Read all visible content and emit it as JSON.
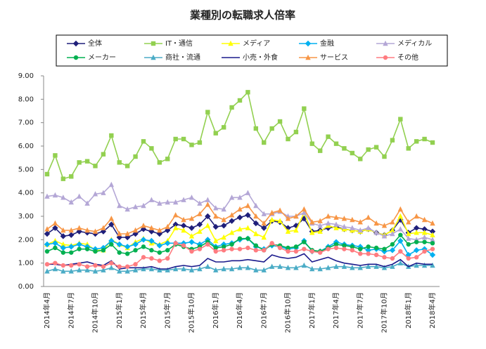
{
  "chart_data": {
    "type": "line",
    "title": "業種別の転職求人倍率",
    "categories": [
      "2014年4月",
      null,
      null,
      "2014年7月",
      null,
      null,
      "2014年10月",
      null,
      null,
      "2015年1月",
      null,
      null,
      "2015年4月",
      null,
      null,
      "2015年7月",
      null,
      null,
      "2015年10月",
      null,
      null,
      "2016年1月",
      null,
      null,
      "2016年4月",
      null,
      null,
      "2016年7月",
      null,
      null,
      "2016年10月",
      null,
      null,
      "2017年1月",
      null,
      null,
      "2017年4月",
      null,
      null,
      "2017年7月",
      null,
      null,
      "2017年10月",
      null,
      null,
      "2018年1月",
      null,
      null,
      "2018年4月"
    ],
    "series": [
      {
        "name": "全体",
        "color": "#1f1f7a",
        "marker": "diamond",
        "values": [
          2.25,
          2.5,
          2.15,
          2.2,
          2.35,
          2.3,
          2.25,
          2.35,
          2.65,
          2.1,
          2.1,
          2.25,
          2.45,
          2.35,
          2.25,
          2.4,
          2.65,
          2.6,
          2.5,
          2.65,
          3.0,
          2.55,
          2.6,
          2.8,
          2.95,
          3.05,
          2.7,
          2.5,
          2.8,
          2.75,
          2.5,
          2.6,
          2.9,
          2.35,
          2.4,
          2.5,
          2.55,
          2.45,
          2.4,
          2.35,
          2.45,
          2.3,
          2.2,
          2.4,
          2.85,
          2.3,
          2.5,
          2.45,
          2.35
        ]
      },
      {
        "name": "IT・通信",
        "color": "#92d050",
        "marker": "square",
        "values": [
          4.8,
          5.6,
          4.6,
          4.7,
          5.3,
          5.35,
          5.15,
          5.65,
          6.45,
          5.3,
          5.15,
          5.55,
          6.2,
          5.9,
          5.3,
          5.45,
          6.3,
          6.3,
          6.05,
          6.15,
          7.45,
          6.55,
          6.8,
          7.65,
          7.95,
          8.3,
          6.75,
          6.15,
          6.75,
          7.05,
          6.3,
          6.6,
          7.6,
          6.1,
          5.8,
          6.4,
          6.1,
          5.9,
          5.7,
          5.45,
          5.85,
          5.95,
          5.55,
          6.25,
          7.15,
          5.9,
          6.2,
          6.3,
          6.15
        ]
      },
      {
        "name": "メディア",
        "color": "#ffff00",
        "marker": "triangle",
        "values": [
          1.8,
          1.95,
          1.8,
          1.75,
          1.85,
          1.8,
          1.55,
          1.55,
          2.0,
          1.8,
          1.65,
          1.9,
          2.05,
          1.85,
          1.8,
          1.95,
          2.5,
          2.4,
          2.15,
          2.35,
          2.6,
          1.95,
          2.1,
          2.3,
          2.45,
          2.5,
          2.25,
          2.1,
          2.85,
          2.8,
          2.35,
          2.4,
          3.15,
          2.3,
          2.35,
          2.6,
          2.5,
          2.45,
          2.4,
          2.35,
          2.45,
          2.3,
          2.2,
          2.4,
          3.0,
          2.25,
          2.3,
          2.3,
          2.2
        ]
      },
      {
        "name": "金融",
        "color": "#00b0f0",
        "marker": "diamond",
        "values": [
          1.8,
          1.85,
          1.65,
          1.7,
          1.8,
          1.7,
          1.6,
          1.65,
          1.95,
          1.8,
          1.7,
          1.8,
          2.0,
          1.95,
          1.75,
          1.85,
          1.85,
          1.85,
          1.9,
          1.8,
          2.0,
          1.7,
          1.8,
          1.85,
          2.0,
          2.05,
          1.7,
          1.6,
          1.75,
          1.7,
          1.6,
          1.65,
          1.95,
          1.5,
          1.5,
          1.7,
          1.9,
          1.8,
          1.75,
          1.7,
          1.55,
          1.6,
          1.5,
          1.55,
          1.95,
          1.35,
          1.55,
          1.6,
          1.35
        ]
      },
      {
        "name": "メディカル",
        "color": "#b4a7d6",
        "marker": "triangle",
        "values": [
          3.85,
          3.9,
          3.8,
          3.6,
          3.85,
          3.55,
          3.95,
          4.0,
          4.35,
          3.45,
          3.3,
          3.4,
          3.45,
          3.7,
          3.55,
          3.6,
          3.6,
          3.7,
          3.8,
          3.55,
          3.7,
          3.35,
          3.3,
          3.8,
          3.8,
          4.0,
          3.45,
          3.1,
          3.1,
          3.2,
          3.0,
          3.0,
          3.15,
          2.7,
          2.6,
          2.7,
          2.65,
          2.55,
          2.5,
          2.4,
          2.5,
          2.3,
          2.15,
          2.25,
          2.45,
          2.05,
          2.0,
          2.1,
          2.0
        ]
      },
      {
        "name": "メーカー",
        "color": "#00b050",
        "marker": "circle",
        "values": [
          1.5,
          1.65,
          1.45,
          1.45,
          1.6,
          1.6,
          1.5,
          1.55,
          1.8,
          1.45,
          1.4,
          1.55,
          1.7,
          1.55,
          1.45,
          1.55,
          1.8,
          1.7,
          1.6,
          1.7,
          1.9,
          1.65,
          1.7,
          1.8,
          2.05,
          2.05,
          1.75,
          1.55,
          1.8,
          1.75,
          1.65,
          1.7,
          1.9,
          1.55,
          1.5,
          1.65,
          1.8,
          1.75,
          1.7,
          1.6,
          1.7,
          1.65,
          1.6,
          1.8,
          2.2,
          1.8,
          1.9,
          1.9,
          1.85
        ]
      },
      {
        "name": "商社・流通",
        "color": "#4bacc6",
        "marker": "triangle",
        "values": [
          0.65,
          0.75,
          0.65,
          0.65,
          0.7,
          0.7,
          0.65,
          0.7,
          0.8,
          0.65,
          0.65,
          0.7,
          0.75,
          0.75,
          0.7,
          0.7,
          0.75,
          0.75,
          0.7,
          0.75,
          0.85,
          0.7,
          0.75,
          0.75,
          0.8,
          0.8,
          0.7,
          0.7,
          0.85,
          0.85,
          0.8,
          0.8,
          0.9,
          0.75,
          0.75,
          0.8,
          0.85,
          0.85,
          0.8,
          0.8,
          0.85,
          0.85,
          0.8,
          0.85,
          1.0,
          0.85,
          0.9,
          0.9,
          0.9
        ]
      },
      {
        "name": "小売・外食",
        "color": "#1a1a8c",
        "marker": "none",
        "values": [
          0.95,
          0.95,
          0.9,
          0.95,
          1.0,
          1.05,
          0.95,
          0.9,
          1.1,
          0.75,
          0.8,
          0.8,
          0.8,
          0.85,
          0.75,
          0.75,
          0.85,
          0.9,
          0.85,
          0.9,
          1.2,
          1.05,
          1.05,
          1.1,
          1.1,
          1.15,
          1.1,
          1.05,
          1.35,
          1.25,
          1.2,
          1.25,
          1.4,
          1.05,
          1.15,
          1.25,
          1.1,
          1.0,
          0.95,
          0.9,
          0.95,
          0.95,
          0.85,
          0.95,
          1.15,
          0.85,
          1.0,
          0.95,
          0.95
        ]
      },
      {
        "name": "サービス",
        "color": "#f79646",
        "marker": "triangle",
        "values": [
          2.45,
          2.7,
          2.4,
          2.4,
          2.5,
          2.4,
          2.35,
          2.5,
          2.9,
          2.25,
          2.25,
          2.4,
          2.6,
          2.5,
          2.4,
          2.55,
          3.05,
          2.85,
          2.9,
          3.1,
          3.5,
          3.0,
          2.85,
          3.05,
          3.3,
          3.45,
          3.0,
          2.7,
          3.15,
          3.25,
          2.9,
          3.0,
          3.3,
          2.75,
          2.8,
          3.0,
          2.95,
          2.9,
          2.85,
          2.75,
          2.95,
          2.7,
          2.6,
          2.75,
          3.3,
          2.75,
          3.0,
          2.85,
          2.7
        ]
      },
      {
        "name": "その他",
        "color": "#ff7c80",
        "marker": "circle",
        "values": [
          0.95,
          1.0,
          0.9,
          0.9,
          0.95,
          0.85,
          0.9,
          0.85,
          1.0,
          0.85,
          0.85,
          0.95,
          1.25,
          1.2,
          1.1,
          1.2,
          1.85,
          1.75,
          1.5,
          1.6,
          1.8,
          1.5,
          1.55,
          1.6,
          1.6,
          1.65,
          1.55,
          1.55,
          1.85,
          1.65,
          1.5,
          1.5,
          1.6,
          1.5,
          1.45,
          1.6,
          1.65,
          1.6,
          1.55,
          1.4,
          1.4,
          1.35,
          1.25,
          1.2,
          1.5,
          1.2,
          1.25,
          1.5,
          1.6
        ]
      }
    ],
    "ylim": [
      0,
      9
    ],
    "yticks": [
      {
        "value": 0,
        "label": "0.00"
      },
      {
        "value": 1,
        "label": "1.00"
      },
      {
        "value": 2,
        "label": "2.00"
      },
      {
        "value": 3,
        "label": "3.00"
      },
      {
        "value": 4,
        "label": "4.00"
      },
      {
        "value": 5,
        "label": "5.00"
      },
      {
        "value": 6,
        "label": "6.00"
      },
      {
        "value": 7,
        "label": "7.00"
      },
      {
        "value": 8,
        "label": "8.00"
      },
      {
        "value": 9,
        "label": "9.00"
      }
    ],
    "grid": false
  }
}
